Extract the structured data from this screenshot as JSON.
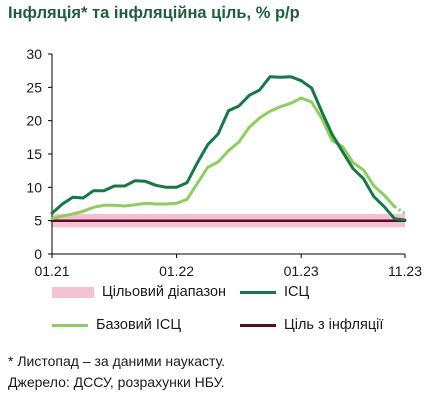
{
  "title": "Інфляція* та інфляційна ціль, % р/р",
  "chart_data": {
    "type": "line",
    "title": "Інфляція* та інфляційна ціль, % р/р",
    "ylim": [
      0,
      30
    ],
    "yticks": [
      0,
      5,
      10,
      15,
      20,
      25,
      30
    ],
    "xticks": [
      "01.21",
      "01.22",
      "01.23",
      "11.23"
    ],
    "x": [
      "01.21",
      "02.21",
      "03.21",
      "04.21",
      "05.21",
      "06.21",
      "07.21",
      "08.21",
      "09.21",
      "10.21",
      "11.21",
      "12.21",
      "01.22",
      "02.22",
      "03.22",
      "04.22",
      "05.22",
      "06.22",
      "07.22",
      "08.22",
      "09.22",
      "10.22",
      "11.22",
      "12.22",
      "01.23",
      "02.23",
      "03.23",
      "04.23",
      "05.23",
      "06.23",
      "07.23",
      "08.23",
      "09.23",
      "10.23",
      "11.23"
    ],
    "grid": false,
    "legend_position": "bottom",
    "target_band": [
      4,
      6
    ],
    "series": [
      {
        "name": "ІСЦ",
        "color": "#137a45",
        "dashed_last": false,
        "values": [
          6.1,
          7.5,
          8.5,
          8.4,
          9.5,
          9.5,
          10.2,
          10.2,
          11.0,
          10.9,
          10.3,
          10.0,
          10.0,
          10.7,
          13.7,
          16.4,
          18.0,
          21.5,
          22.2,
          23.8,
          24.6,
          26.6,
          26.5,
          26.6,
          26.0,
          24.9,
          21.3,
          17.9,
          15.3,
          12.8,
          11.3,
          8.6,
          7.1,
          5.3,
          5.1
        ]
      },
      {
        "name": "Базовий ІСЦ",
        "color": "#8ecf5c",
        "dashed_last": true,
        "values": [
          5.3,
          5.7,
          6.0,
          6.4,
          7.0,
          7.3,
          7.3,
          7.2,
          7.4,
          7.6,
          7.5,
          7.5,
          7.6,
          8.2,
          10.6,
          13.0,
          13.8,
          15.5,
          16.8,
          19.0,
          20.4,
          21.4,
          22.1,
          22.6,
          23.4,
          22.8,
          20.3,
          17.0,
          16.1,
          13.7,
          12.6,
          10.2,
          8.8,
          7.1,
          6.1
        ]
      },
      {
        "name": "Ціль з інфляції",
        "color": "#5a0a2a",
        "dashed_last": false,
        "values": [
          5,
          5,
          5,
          5,
          5,
          5,
          5,
          5,
          5,
          5,
          5,
          5,
          5,
          5,
          5,
          5,
          5,
          5,
          5,
          5,
          5,
          5,
          5,
          5,
          5,
          5,
          5,
          5,
          5,
          5,
          5,
          5,
          5,
          5,
          5
        ]
      }
    ],
    "band_series": {
      "name": "Цільовий діапазон",
      "color": "#f4c2d3"
    }
  },
  "legend": {
    "band_label": "Цільовий діапазон",
    "cpi_label": "ІСЦ",
    "core_label": "Базовий ІСЦ",
    "target_label": "Ціль з інфляції"
  },
  "footnotes": {
    "line1": "* Листопад – за даними наукасту.",
    "line2": "Джерело: ДССУ, розрахунки НБУ."
  }
}
